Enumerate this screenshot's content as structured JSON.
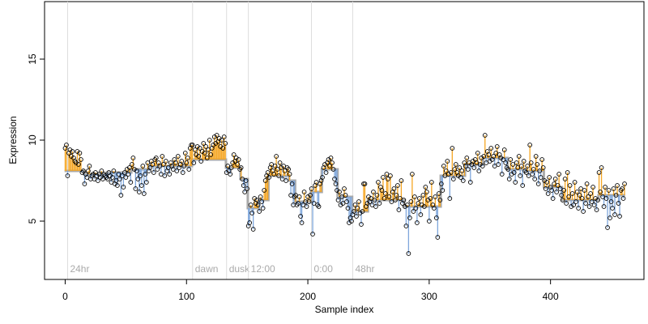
{
  "chart_data": {
    "type": "scatter",
    "x_label": "Sample index",
    "y_label": "Expression",
    "xlim": [
      -17,
      477
    ],
    "ylim": [
      1.4,
      18.55
    ],
    "xticks": [
      0,
      100,
      200,
      300,
      400
    ],
    "yticks": [
      5,
      10,
      15
    ],
    "point_color": "#000000",
    "fit_color": "#aaaaaa",
    "above_color": "#f5a623",
    "below_color": "#7fa7dc",
    "marker_color": "#dddddd",
    "markers": [
      {
        "x": 2,
        "label": "24hr"
      },
      {
        "x": 105,
        "label": "dawn"
      },
      {
        "x": 133,
        "label": "dusk"
      },
      {
        "x": 151,
        "label": "12:00"
      },
      {
        "x": 203,
        "label": "0:00"
      },
      {
        "x": 237,
        "label": "48hr"
      }
    ],
    "fit": [
      {
        "x0": 0,
        "x1": 16,
        "y": 8.1
      },
      {
        "x0": 16,
        "x1": 35,
        "y": 7.9
      },
      {
        "x0": 35,
        "x1": 55,
        "y": 8.0
      },
      {
        "x0": 55,
        "x1": 70,
        "y": 8.2
      },
      {
        "x0": 70,
        "x1": 105,
        "y": 8.4
      },
      {
        "x0": 105,
        "x1": 133,
        "y": 8.8
      },
      {
        "x0": 133,
        "x1": 145,
        "y": 8.3
      },
      {
        "x0": 145,
        "x1": 151,
        "y": 7.6
      },
      {
        "x0": 151,
        "x1": 160,
        "y": 5.8
      },
      {
        "x0": 160,
        "x1": 168,
        "y": 6.3
      },
      {
        "x0": 168,
        "x1": 185,
        "y": 7.8
      },
      {
        "x0": 185,
        "x1": 190,
        "y": 7.5
      },
      {
        "x0": 190,
        "x1": 203,
        "y": 6.2
      },
      {
        "x0": 203,
        "x1": 212,
        "y": 6.8
      },
      {
        "x0": 212,
        "x1": 225,
        "y": 8.2
      },
      {
        "x0": 225,
        "x1": 237,
        "y": 6.5
      },
      {
        "x0": 237,
        "x1": 250,
        "y": 5.6
      },
      {
        "x0": 250,
        "x1": 280,
        "y": 6.3
      },
      {
        "x0": 280,
        "x1": 310,
        "y": 5.9
      },
      {
        "x0": 310,
        "x1": 330,
        "y": 7.8
      },
      {
        "x0": 330,
        "x1": 345,
        "y": 8.5
      },
      {
        "x0": 345,
        "x1": 365,
        "y": 8.9
      },
      {
        "x0": 365,
        "x1": 380,
        "y": 8.2
      },
      {
        "x0": 380,
        "x1": 395,
        "y": 8.1
      },
      {
        "x0": 395,
        "x1": 410,
        "y": 7.1
      },
      {
        "x0": 410,
        "x1": 440,
        "y": 6.3
      },
      {
        "x0": 440,
        "x1": 462,
        "y": 6.6
      }
    ],
    "values": [
      9.5,
      9.7,
      7.8,
      9.2,
      9.4,
      9.0,
      9.3,
      8.9,
      8.7,
      8.6,
      9.3,
      8.5,
      9.2,
      8.8,
      8.0,
      8.1,
      7.3,
      7.9,
      7.7,
      8.1,
      8.4,
      7.6,
      7.8,
      7.9,
      7.6,
      8.0,
      7.8,
      7.5,
      7.9,
      7.7,
      8.1,
      7.6,
      7.9,
      7.8,
      7.7,
      7.6,
      8.0,
      7.8,
      7.4,
      7.7,
      8.1,
      7.3,
      7.5,
      7.2,
      7.9,
      7.6,
      6.6,
      7.8,
      7.1,
      8.0,
      7.7,
      8.2,
      7.9,
      8.3,
      7.4,
      8.5,
      8.9,
      8.2,
      7.0,
      8.1,
      7.6,
      6.8,
      7.8,
      7.2,
      8.4,
      6.7,
      7.9,
      7.4,
      8.6,
      8.1,
      8.3,
      8.7,
      8.5,
      8.0,
      8.8,
      8.9,
      8.2,
      8.6,
      8.4,
      7.9,
      9.0,
      8.5,
      7.8,
      8.7,
      8.1,
      8.3,
      7.9,
      8.6,
      8.4,
      8.2,
      8.8,
      8.6,
      8.1,
      9.0,
      8.3,
      8.5,
      8.7,
      8.0,
      8.4,
      9.2,
      8.6,
      8.9,
      8.2,
      9.5,
      9.7,
      9.7,
      8.6,
      9.4,
      9.1,
      9.6,
      9.0,
      9.5,
      8.7,
      9.3,
      9.8,
      9.2,
      9.6,
      8.9,
      9.4,
      10.0,
      9.1,
      9.5,
      9.7,
      10.2,
      9.8,
      10.3,
      9.9,
      10.1,
      9.6,
      10.0,
      9.5,
      10.2,
      9.8,
      8.0,
      8.4,
      8.1,
      7.9,
      8.3,
      8.6,
      9.1,
      8.7,
      8.9,
      8.5,
      8.8,
      8.2,
      8.3,
      7.6,
      7.2,
      6.8,
      7.5,
      7.0,
      4.7,
      4.9,
      6.0,
      5.5,
      4.5,
      6.4,
      6.1,
      6.3,
      6.0,
      5.6,
      6.5,
      6.2,
      5.8,
      6.9,
      7.5,
      7.8,
      8.0,
      7.7,
      8.3,
      8.5,
      8.1,
      7.9,
      8.4,
      9.0,
      8.2,
      7.8,
      8.6,
      8.3,
      7.6,
      8.4,
      8.1,
      7.5,
      8.3,
      8.2,
      7.9,
      6.6,
      7.3,
      6.0,
      6.5,
      6.6,
      6.0,
      6.1,
      6.5,
      5.3,
      4.9,
      6.0,
      6.8,
      6.2,
      5.9,
      6.5,
      6.2,
      6.6,
      7.0,
      4.2,
      6.1,
      7.2,
      7.4,
      6.0,
      5.9,
      7.3,
      7.5,
      7.7,
      8.3,
      8.5,
      8.0,
      8.6,
      8.8,
      8.4,
      8.9,
      8.6,
      8.2,
      7.6,
      7.3,
      6.9,
      6.3,
      6.8,
      6.0,
      6.5,
      6.1,
      7.0,
      6.6,
      6.2,
      5.8,
      4.9,
      5.2,
      5.0,
      5.4,
      5.6,
      6.0,
      5.3,
      5.8,
      6.2,
      5.5,
      4.8,
      5.6,
      7.3,
      7.3,
      5.9,
      6.1,
      6.5,
      6.2,
      6.4,
      6.0,
      6.8,
      6.3,
      5.9,
      6.6,
      7.4,
      6.1,
      7.1,
      6.9,
      7.7,
      6.4,
      6.7,
      7.9,
      7.6,
      6.5,
      7.8,
      6.2,
      6.8,
      7.0,
      6.3,
      6.6,
      7.2,
      5.7,
      6.4,
      7.5,
      6.1,
      6.3,
      5.9,
      4.7,
      6.0,
      3.0,
      5.2,
      6.2,
      7.9,
      5.6,
      6.5,
      5.8,
      4.9,
      6.1,
      6.4,
      5.4,
      6.0,
      6.6,
      5.9,
      7.1,
      6.8,
      6.3,
      5.0,
      6.4,
      7.4,
      6.0,
      5.8,
      6.5,
      5.2,
      4.0,
      6.7,
      6.3,
      7.3,
      6.9,
      8.4,
      7.8,
      8.1,
      8.7,
      7.9,
      6.4,
      8.0,
      9.5,
      7.6,
      8.2,
      8.5,
      8.0,
      7.8,
      8.3,
      7.7,
      8.1,
      7.5,
      8.6,
      8.4,
      8.9,
      8.2,
      8.6,
      7.4,
      8.5,
      8.7,
      8.3,
      8.8,
      8.6,
      9.2,
      8.1,
      8.5,
      8.9,
      8.4,
      9.0,
      10.3,
      8.6,
      9.3,
      9.1,
      8.7,
      9.5,
      8.8,
      9.0,
      8.4,
      9.2,
      9.6,
      8.5,
      9.1,
      8.9,
      7.9,
      8.8,
      9.4,
      8.6,
      8.3,
      8.2,
      7.6,
      8.8,
      7.9,
      8.5,
      8.0,
      7.4,
      8.6,
      8.3,
      9.0,
      7.8,
      8.4,
      7.2,
      8.7,
      8.1,
      8.0,
      8.4,
      7.8,
      9.7,
      8.6,
      7.9,
      8.2,
      7.6,
      9.0,
      8.5,
      7.3,
      8.1,
      7.7,
      8.8,
      8.3,
      7.5,
      7.0,
      7.4,
      6.7,
      7.7,
      7.1,
      6.9,
      6.4,
      7.3,
      7.6,
      6.8,
      7.2,
      7.9,
      7.0,
      6.6,
      6.3,
      6.9,
      7.6,
      6.1,
      8.0,
      6.5,
      7.2,
      5.9,
      6.7,
      6.0,
      7.4,
      6.2,
      6.8,
      5.8,
      6.6,
      7.0,
      6.4,
      5.6,
      6.9,
      6.1,
      7.3,
      6.5,
      5.9,
      6.7,
      6.2,
      7.1,
      6.0,
      6.4,
      5.7,
      6.3,
      8.0,
      6.8,
      8.3,
      6.5,
      5.9,
      7.1,
      6.4,
      4.6,
      6.9,
      5.2,
      6.2,
      5.8,
      7.0,
      5.4,
      6.6,
      7.2,
      6.1,
      5.3,
      6.9,
      7.0,
      6.4,
      7.3
    ]
  }
}
